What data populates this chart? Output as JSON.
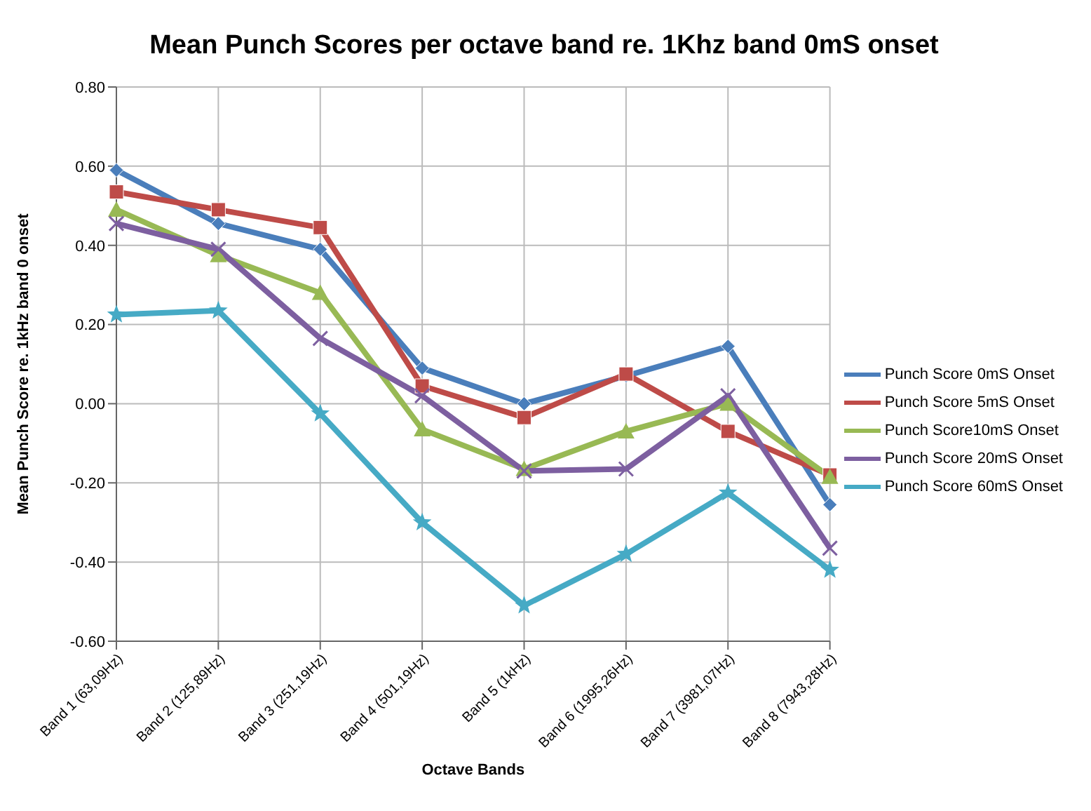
{
  "chart_data": {
    "type": "line",
    "title": "Mean Punch Scores per octave band re. 1Khz band 0mS onset",
    "xlabel": "Octave Bands",
    "ylabel": "Mean Punch Score re. 1kHz band 0 onset",
    "categories": [
      "Band 1 (63,09Hz)",
      "Band 2 (125,89Hz)",
      "Band 3 (251,19Hz)",
      "Band 4 (501,19Hz)",
      "Band 5 (1kHz)",
      "Band 6 (1995,26Hz)",
      "Band 7 (3981,07Hz)",
      "Band 8 (7943,28Hz)"
    ],
    "series": [
      {
        "name": "Punch Score 0mS Onset",
        "color": "#4a7ebb",
        "marker": "diamond",
        "values": [
          0.59,
          0.455,
          0.39,
          0.09,
          0.0,
          0.07,
          0.145,
          -0.255
        ]
      },
      {
        "name": "Punch Score 5mS Onset",
        "color": "#be4b48",
        "marker": "square",
        "values": [
          0.535,
          0.49,
          0.445,
          0.045,
          -0.035,
          0.075,
          -0.07,
          -0.18
        ]
      },
      {
        "name": "Punch Score10mS Onset",
        "color": "#98b954",
        "marker": "triangle",
        "values": [
          0.49,
          0.375,
          0.28,
          -0.065,
          -0.165,
          -0.07,
          0.0,
          -0.185
        ]
      },
      {
        "name": "Punch Score 20mS Onset",
        "color": "#7d5fa0",
        "marker": "cross",
        "values": [
          0.455,
          0.39,
          0.165,
          0.02,
          -0.17,
          -0.165,
          0.02,
          -0.365
        ]
      },
      {
        "name": "Punch Score 60mS Onset",
        "color": "#46aac5",
        "marker": "star",
        "values": [
          0.225,
          0.235,
          -0.025,
          -0.3,
          -0.51,
          -0.38,
          -0.225,
          -0.42
        ]
      }
    ],
    "ylim": [
      -0.6,
      0.8
    ],
    "yticks": [
      {
        "value": -0.6,
        "label": "-0.60"
      },
      {
        "value": -0.4,
        "label": "-0.40"
      },
      {
        "value": -0.2,
        "label": "-0.20"
      },
      {
        "value": 0,
        "label": "0.00"
      },
      {
        "value": 0.2,
        "label": "0.20"
      },
      {
        "value": 0.4,
        "label": "0.40"
      },
      {
        "value": 0.6,
        "label": "0.60"
      },
      {
        "value": 0.8,
        "label": "0.80"
      }
    ],
    "grid": true,
    "legend": "right",
    "line_style": "solid"
  }
}
